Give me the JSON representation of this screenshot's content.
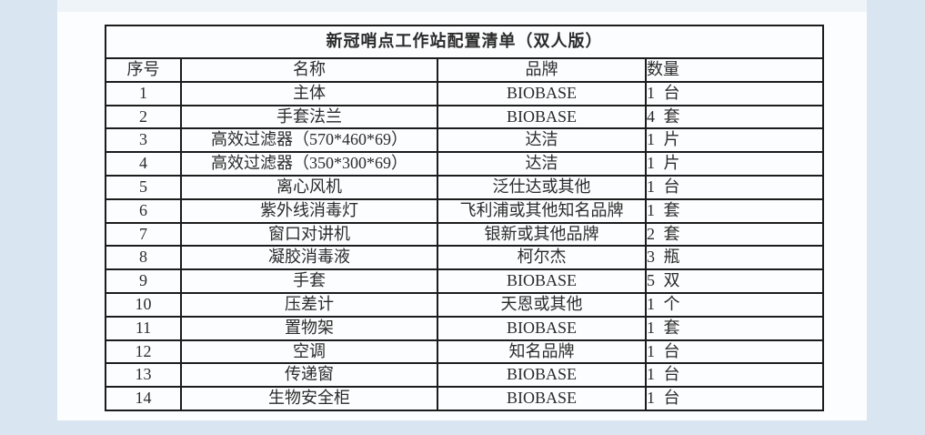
{
  "page": {
    "background_color": "#d9e6f1",
    "paper_color": "#fcfdfe",
    "border_color": "#1c1c1c",
    "text_color": "#2b2b2b"
  },
  "table": {
    "title": "新冠哨点工作站配置清单（双人版）",
    "columns": [
      {
        "key": "no",
        "label": "序号",
        "align": "center"
      },
      {
        "key": "name",
        "label": "名称",
        "align": "center"
      },
      {
        "key": "brand",
        "label": "品牌",
        "align": "center"
      },
      {
        "key": "qty",
        "label": "数量",
        "align": "left"
      }
    ],
    "rows": [
      {
        "no": "1",
        "name": "主体",
        "brand": "BIOBASE",
        "qty": "1 台"
      },
      {
        "no": "2",
        "name": "手套法兰",
        "brand": "BIOBASE",
        "qty": "4 套"
      },
      {
        "no": "3",
        "name": "高效过滤器（570*460*69）",
        "brand": "达洁",
        "qty": "1 片"
      },
      {
        "no": "4",
        "name": "高效过滤器（350*300*69）",
        "brand": "达洁",
        "qty": "1 片"
      },
      {
        "no": "5",
        "name": "离心风机",
        "brand": "泛仕达或其他",
        "qty": "1 台"
      },
      {
        "no": "6",
        "name": "紫外线消毒灯",
        "brand": "飞利浦或其他知名品牌",
        "qty": "1 套"
      },
      {
        "no": "7",
        "name": "窗口对讲机",
        "brand": "银新或其他品牌",
        "qty": "2 套"
      },
      {
        "no": "8",
        "name": "凝胶消毒液",
        "brand": "柯尔杰",
        "qty": "3 瓶"
      },
      {
        "no": "9",
        "name": "手套",
        "brand": "BIOBASE",
        "qty": "5 双"
      },
      {
        "no": "10",
        "name": "压差计",
        "brand": "天恩或其他",
        "qty": "1 个"
      },
      {
        "no": "11",
        "name": "置物架",
        "brand": "BIOBASE",
        "qty": "1 套"
      },
      {
        "no": "12",
        "name": "空调",
        "brand": "知名品牌",
        "qty": "1 台"
      },
      {
        "no": "13",
        "name": "传递窗",
        "brand": "BIOBASE",
        "qty": "1 台"
      },
      {
        "no": "14",
        "name": "生物安全柜",
        "brand": "BIOBASE",
        "qty": "1 台"
      }
    ]
  }
}
